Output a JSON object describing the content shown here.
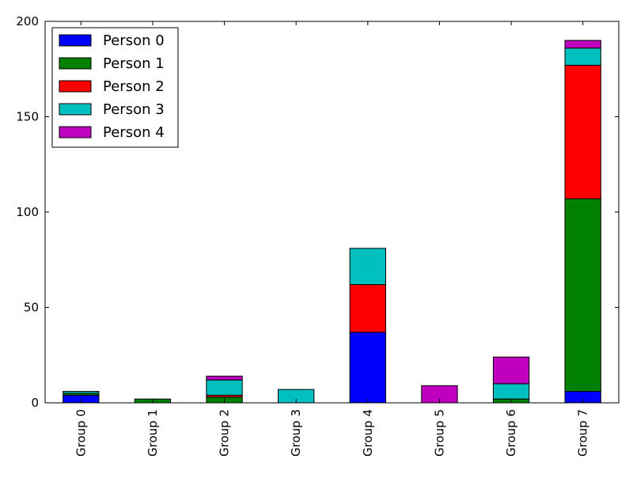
{
  "chart_data": {
    "type": "bar",
    "stacked": true,
    "categories": [
      "Group 0",
      "Group 1",
      "Group 2",
      "Group 3",
      "Group 4",
      "Group 5",
      "Group 6",
      "Group 7"
    ],
    "series": [
      {
        "name": "Person 0",
        "color": "#0000ff",
        "values": [
          4,
          0,
          0,
          0,
          37,
          0,
          0,
          6
        ]
      },
      {
        "name": "Person 1",
        "color": "#008000",
        "values": [
          1,
          2,
          3,
          0,
          0,
          0,
          2,
          101
        ]
      },
      {
        "name": "Person 2",
        "color": "#ff0000",
        "values": [
          0,
          0,
          1,
          0,
          25,
          0,
          0,
          70
        ]
      },
      {
        "name": "Person 3",
        "color": "#00bfbf",
        "values": [
          1,
          0,
          8,
          7,
          19,
          0,
          8,
          9
        ]
      },
      {
        "name": "Person 4",
        "color": "#bf00bf",
        "values": [
          0,
          0,
          2,
          0,
          0,
          9,
          14,
          4
        ]
      }
    ],
    "ylim": [
      0,
      200
    ],
    "yticks": [
      0,
      50,
      100,
      150,
      200
    ],
    "xlabel": "",
    "ylabel": "",
    "title": "",
    "legend_position": "top-left",
    "grid": false
  }
}
